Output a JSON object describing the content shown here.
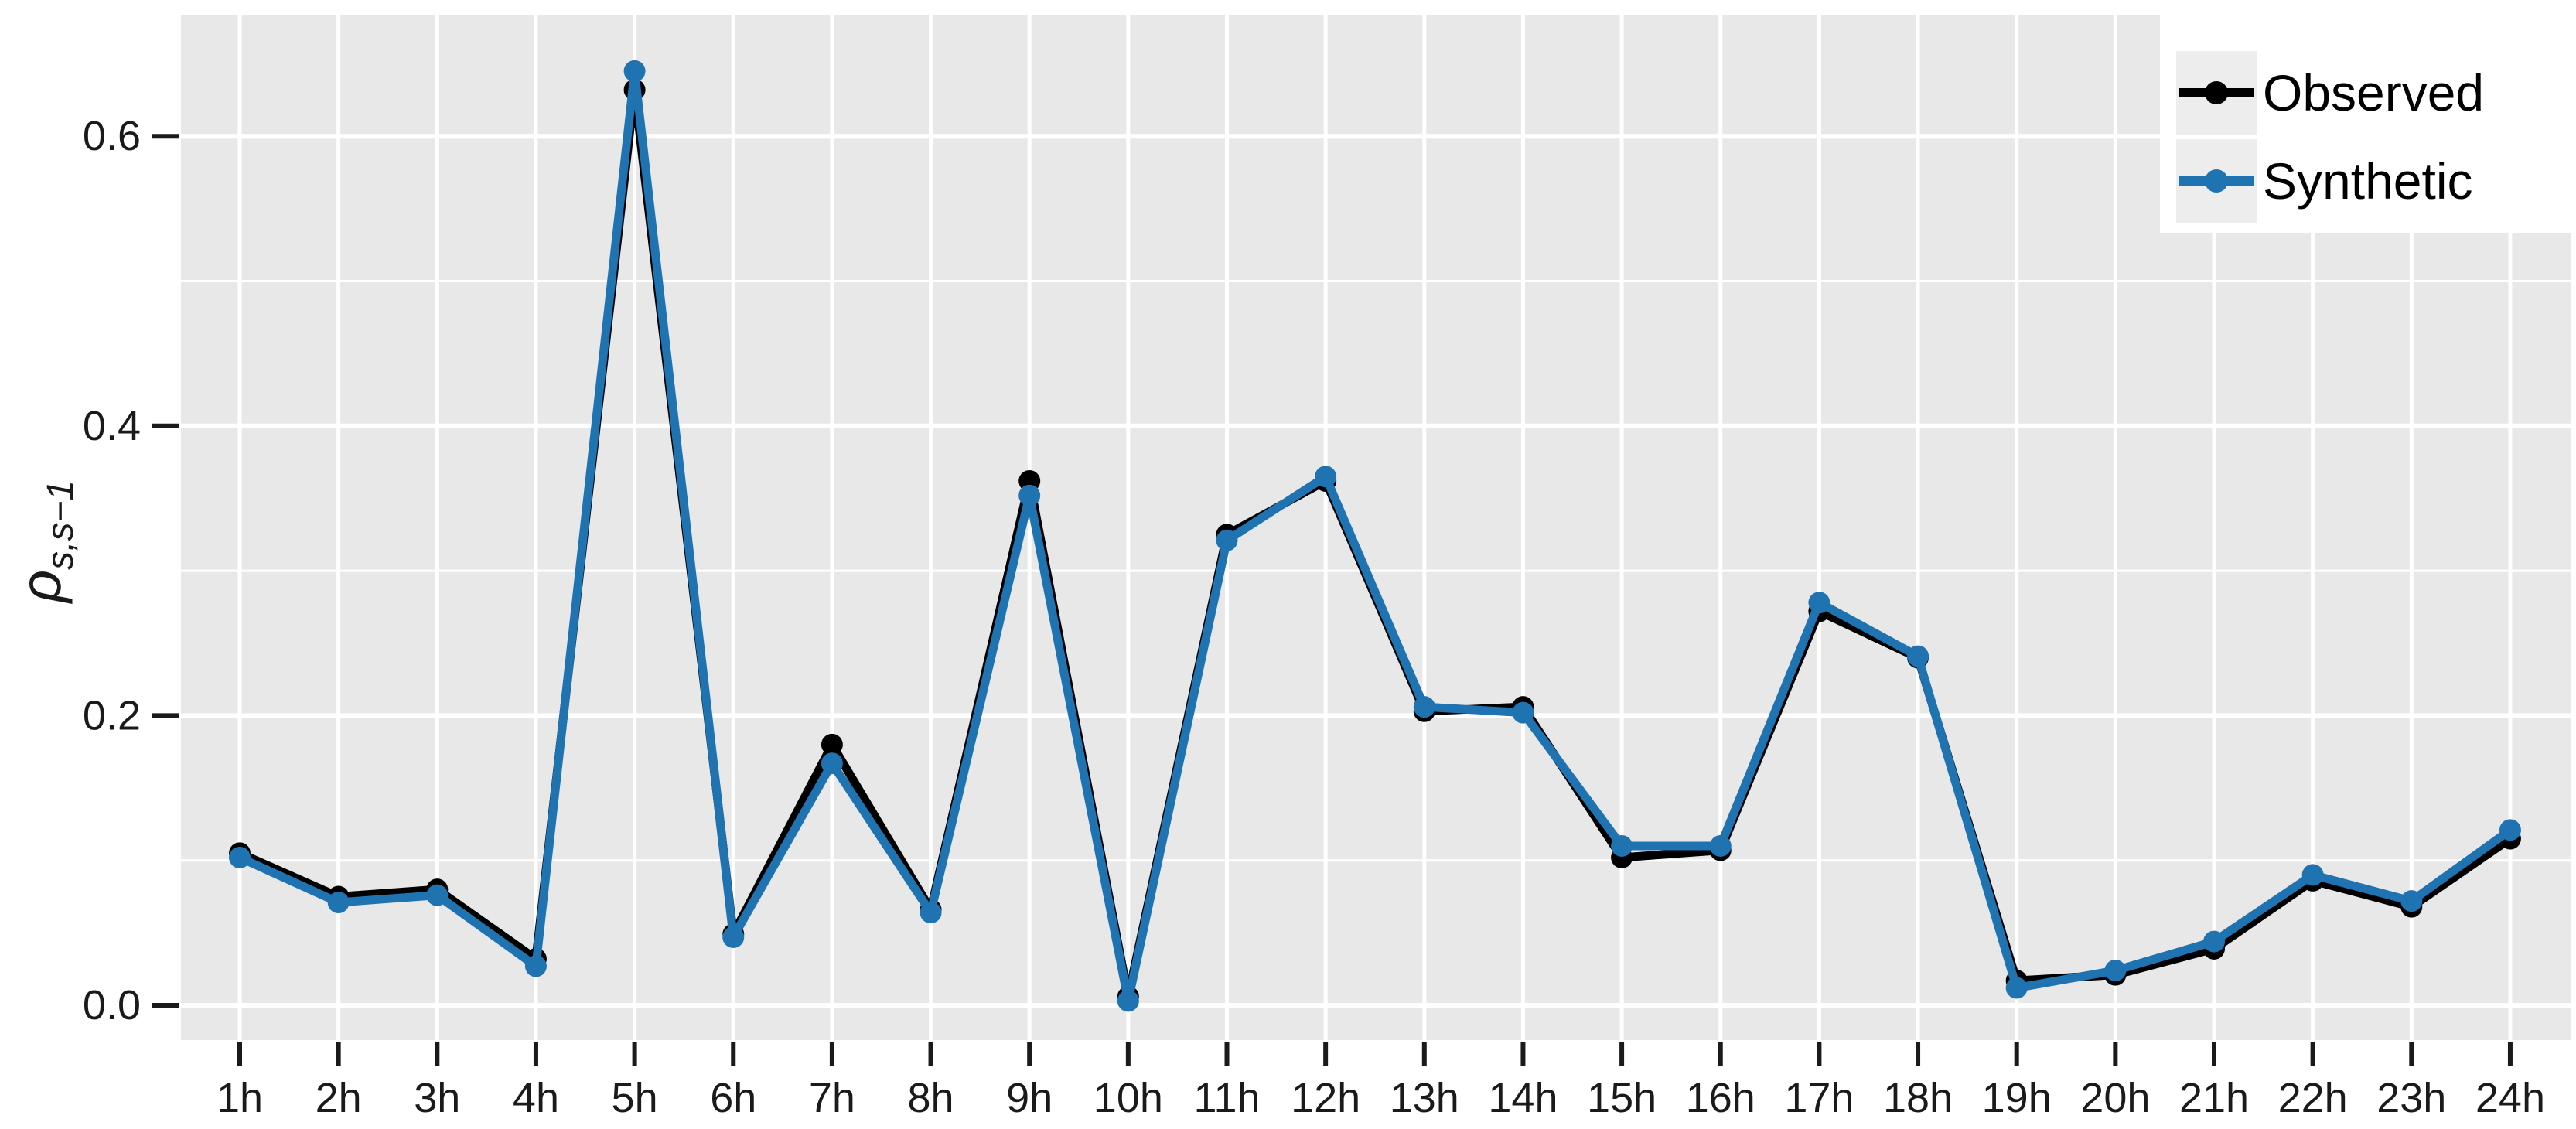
{
  "chart_data": {
    "type": "line",
    "categories": [
      "1h",
      "2h",
      "3h",
      "4h",
      "5h",
      "6h",
      "7h",
      "8h",
      "9h",
      "10h",
      "11h",
      "12h",
      "13h",
      "14h",
      "15h",
      "16h",
      "17h",
      "18h",
      "19h",
      "20h",
      "21h",
      "22h",
      "23h",
      "24h"
    ],
    "series": [
      {
        "name": "Observed",
        "color": "#000000",
        "values": [
          0.105,
          0.075,
          0.08,
          0.032,
          0.632,
          0.049,
          0.18,
          0.066,
          0.362,
          0.006,
          0.325,
          0.362,
          0.203,
          0.206,
          0.102,
          0.107,
          0.272,
          0.24,
          0.017,
          0.021,
          0.039,
          0.086,
          0.068,
          0.115
        ]
      },
      {
        "name": "Synthetic",
        "color": "#1f73b1",
        "values": [
          0.102,
          0.071,
          0.076,
          0.027,
          0.645,
          0.047,
          0.167,
          0.064,
          0.352,
          0.003,
          0.321,
          0.365,
          0.206,
          0.202,
          0.11,
          0.11,
          0.278,
          0.241,
          0.012,
          0.024,
          0.044,
          0.09,
          0.072,
          0.121
        ]
      }
    ],
    "title": "",
    "xlabel": "",
    "ylabel_main": "ρ",
    "ylabel_sub": "s,s−1",
    "ylim": [
      -0.024,
      0.683
    ],
    "yticks": [
      {
        "value": 0.0,
        "label": "0.0"
      },
      {
        "value": 0.2,
        "label": "0.2"
      },
      {
        "value": 0.4,
        "label": "0.4"
      },
      {
        "value": 0.6,
        "label": "0.6"
      }
    ],
    "yminor": [
      0.1,
      0.3,
      0.5
    ],
    "grid": "on",
    "legend": {
      "position": "top-right",
      "entries": [
        "Observed",
        "Synthetic"
      ]
    },
    "styles": {
      "panel_bg": "#e8e8e8",
      "grid_color": "#ffffff",
      "text_color": "#1a1a1a",
      "tick_color": "#1a1a1a",
      "legend_bg": "#ffffff",
      "legend_key_bg": "#ededed"
    }
  }
}
